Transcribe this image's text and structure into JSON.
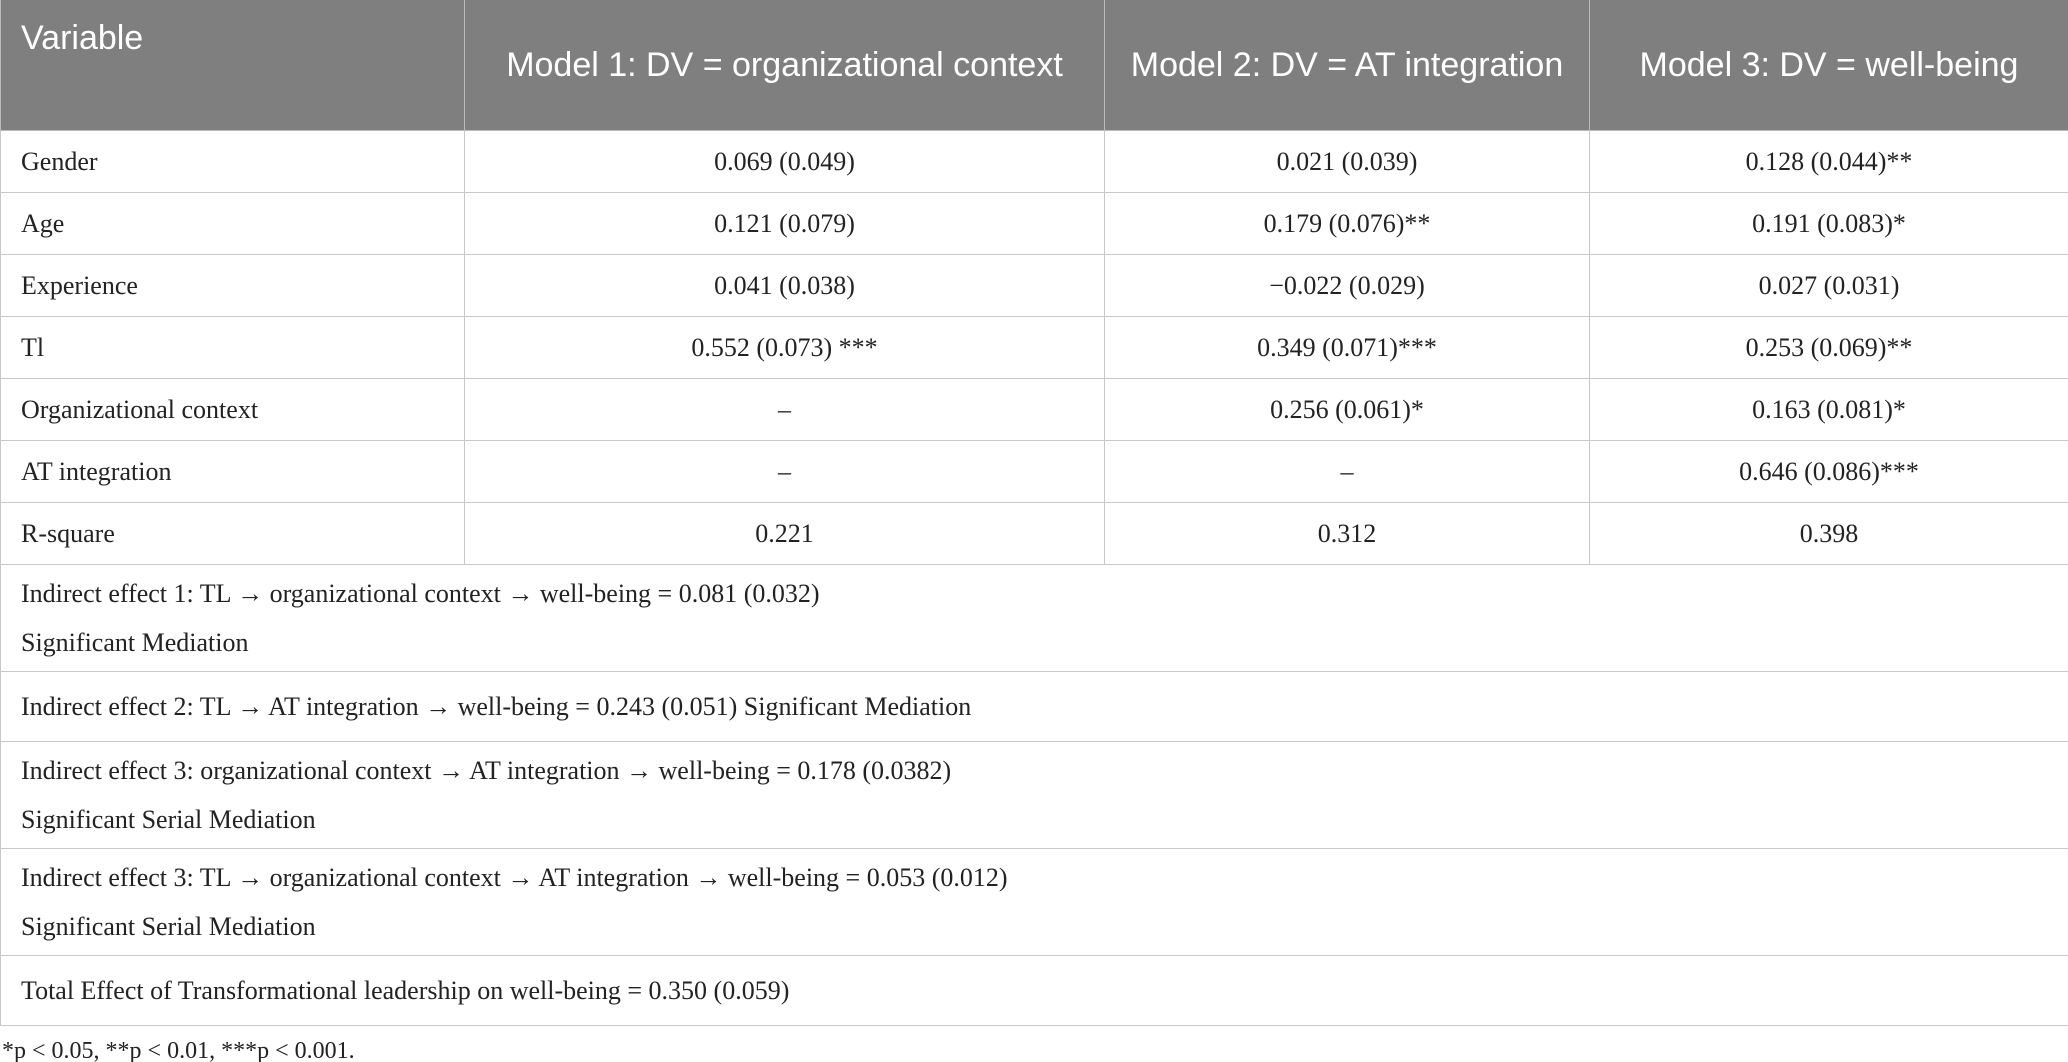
{
  "table": {
    "header": [
      "Variable",
      "Model 1: DV = organizational context",
      "Model 2: DV = AT integration",
      "Model 3: DV = well-being"
    ],
    "rows": [
      [
        "Gender",
        "0.069 (0.049)",
        "0.021 (0.039)",
        "0.128 (0.044)**"
      ],
      [
        "Age",
        "0.121 (0.079)",
        "0.179 (0.076)**",
        "0.191 (0.083)*"
      ],
      [
        "Experience",
        "0.041 (0.038)",
        "−0.022 (0.029)",
        "0.027 (0.031)"
      ],
      [
        "Tl",
        "0.552 (0.073) ***",
        "0.349 (0.071)***",
        "0.253 (0.069)**"
      ],
      [
        "Organizational context",
        "–",
        "0.256 (0.061)*",
        "0.163 (0.081)*"
      ],
      [
        "AT integration",
        "–",
        "–",
        "0.646 (0.086)***"
      ],
      [
        "R-square",
        "0.221",
        "0.312",
        "0.398"
      ]
    ],
    "notes": [
      [
        "Indirect effect 1: TL → organizational context → well-being = 0.081 (0.032)",
        "Significant Mediation"
      ],
      [
        "Indirect effect 2: TL → AT integration → well-being = 0.243 (0.051) Significant Mediation"
      ],
      [
        "Indirect effect 3: organizational context → AT integration → well-being = 0.178 (0.0382)",
        "Significant Serial Mediation"
      ],
      [
        "Indirect effect 3: TL → organizational context → AT integration → well-being = 0.053 (0.012)",
        "Significant Serial Mediation"
      ],
      [
        "Total Effect of Transformational leadership on well-being = 0.350 (0.059)"
      ]
    ],
    "footnote": "*p < 0.05, **p < 0.01, ***p < 0.001."
  }
}
